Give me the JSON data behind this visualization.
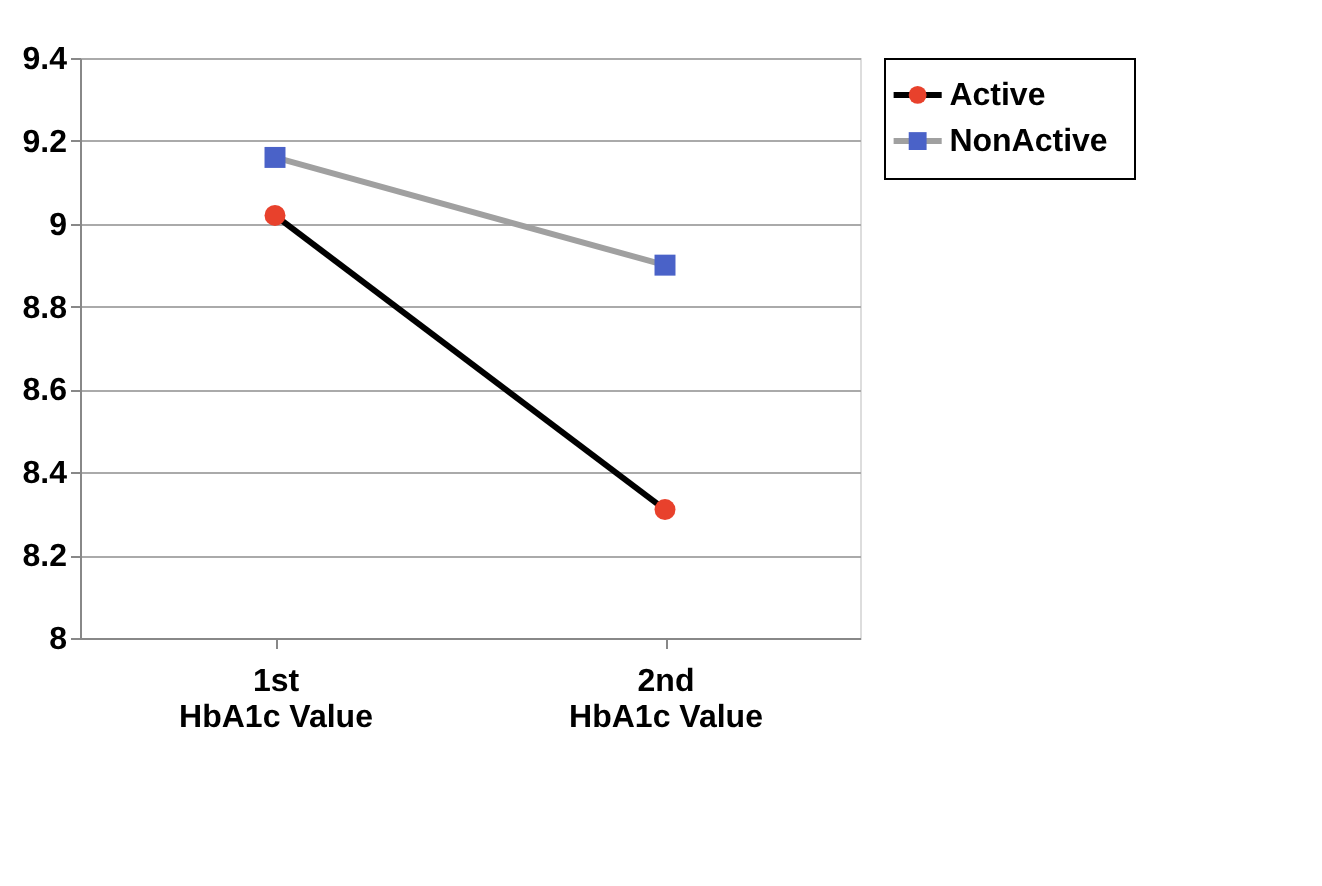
{
  "chart_data": {
    "type": "line",
    "categories": [
      "1st HbA1c Value",
      "2nd HbA1c Value"
    ],
    "series": [
      {
        "name": "Active",
        "color": "#000000",
        "colors": [
          "#e8412c",
          "#e8412c"
        ],
        "marker": "circle",
        "values": [
          9.02,
          8.31
        ]
      },
      {
        "name": "NonActive",
        "color": "#a0a0a0",
        "colors": [
          "#4a62c8",
          "#4a62c8"
        ],
        "marker": "square",
        "values": [
          9.16,
          8.9
        ]
      }
    ],
    "ylim": [
      8,
      9.4
    ],
    "yticks": [
      8,
      8.2,
      8.4,
      8.6,
      8.8,
      9,
      9.2,
      9.4
    ],
    "grid": "y",
    "legend": "right"
  }
}
